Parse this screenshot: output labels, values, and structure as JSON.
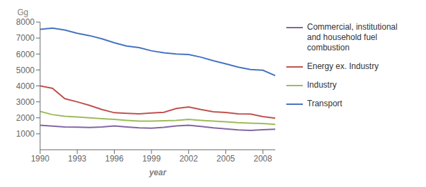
{
  "chart_data": {
    "type": "line",
    "xlabel": "year",
    "ylabel": "Gg",
    "x": [
      1990,
      1991,
      1992,
      1993,
      1994,
      1995,
      1996,
      1997,
      1998,
      1999,
      2000,
      2001,
      2002,
      2003,
      2004,
      2005,
      2006,
      2007,
      2008,
      2009
    ],
    "series": [
      {
        "name": "Transport",
        "color": "#4472C4",
        "values": [
          7550,
          7620,
          7500,
          7300,
          7150,
          6950,
          6700,
          6500,
          6400,
          6200,
          6080,
          6000,
          5970,
          5800,
          5580,
          5380,
          5180,
          5030,
          4980,
          4650
        ]
      },
      {
        "name": "Energy ex. Industry",
        "color": "#C0504D",
        "values": [
          4000,
          3850,
          3200,
          3000,
          2780,
          2520,
          2320,
          2280,
          2250,
          2300,
          2350,
          2580,
          2680,
          2520,
          2380,
          2340,
          2250,
          2240,
          2080,
          1980
        ]
      },
      {
        "name": "Industry",
        "color": "#9BBB59",
        "values": [
          2400,
          2200,
          2100,
          2050,
          2000,
          1950,
          1900,
          1840,
          1790,
          1790,
          1820,
          1840,
          1900,
          1840,
          1790,
          1750,
          1700,
          1670,
          1640,
          1590
        ]
      },
      {
        "name": "Commercial, institutional\nand household fuel\ncombustion",
        "color": "#8064A2",
        "values": [
          1530,
          1480,
          1430,
          1420,
          1400,
          1430,
          1490,
          1430,
          1370,
          1350,
          1410,
          1490,
          1530,
          1460,
          1370,
          1310,
          1240,
          1210,
          1250,
          1290
        ]
      }
    ],
    "xlim": [
      1990,
      2009
    ],
    "xticks": [
      1990,
      1993,
      1996,
      1999,
      2002,
      2005,
      2008
    ],
    "ylim": [
      0,
      8000
    ],
    "yticks": [
      1000,
      2000,
      3000,
      4000,
      5000,
      6000,
      7000,
      8000
    ],
    "grid": false,
    "legend": "right"
  }
}
